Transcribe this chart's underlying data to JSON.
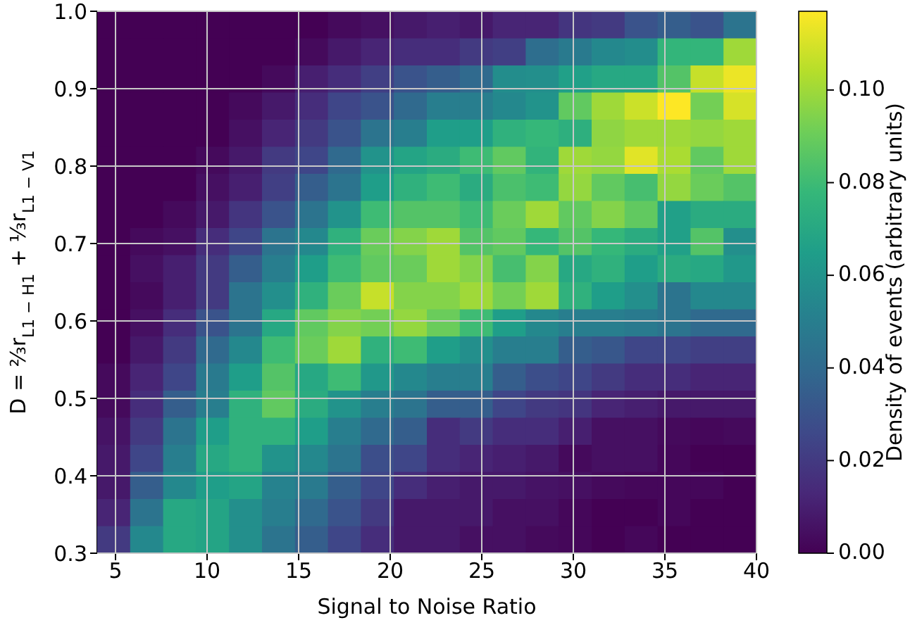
{
  "chart_data": {
    "type": "heatmap",
    "xlabel": "Signal to Noise Ratio",
    "ylabel": "D = ⅔r$_{L1 − H1}$ + ⅓r$_{L1 − V1}$",
    "clabel": "Density of events (arbitrary units)",
    "x": [
      4.9,
      6.7,
      8.5,
      10.3,
      12.1,
      13.9,
      15.7,
      17.5,
      19.3,
      21.1,
      22.9,
      24.7,
      26.5,
      28.3,
      30.1,
      31.9,
      33.7,
      35.5,
      37.3,
      39.1
    ],
    "y": [
      0.9825,
      0.9475,
      0.9125,
      0.8775,
      0.8425,
      0.8075,
      0.7725,
      0.7375,
      0.7025,
      0.6675,
      0.6325,
      0.5975,
      0.5625,
      0.5275,
      0.4925,
      0.4575,
      0.4225,
      0.3875,
      0.3525,
      0.3175
    ],
    "xlim": [
      4,
      40
    ],
    "xticks": [
      5,
      10,
      15,
      20,
      25,
      30,
      35,
      40
    ],
    "ylim": [
      0.3,
      1.0
    ],
    "yticks": [
      0.3,
      0.4,
      0.5,
      0.6,
      0.7,
      0.8,
      0.9,
      {
        "value": 1.0,
        "label": "1.0"
      }
    ],
    "clim": [
      0,
      0.117
    ],
    "cticks": [
      {
        "value": 0,
        "label": "0.00"
      },
      {
        "value": 0.02,
        "label": "0.02"
      },
      {
        "value": 0.04,
        "label": "0.04"
      },
      {
        "value": 0.06,
        "label": "0.06"
      },
      {
        "value": 0.08,
        "label": "0.08"
      },
      {
        "value": 0.1,
        "label": "0.10"
      }
    ],
    "grid": true,
    "cells": [
      [
        0,
        0,
        0,
        0,
        0,
        0,
        0,
        0.003,
        0.005,
        0.008,
        0.01,
        0.008,
        0.012,
        0.012,
        0.018,
        0.02,
        0.03,
        0.035,
        0.03,
        0.045
      ],
      [
        0,
        0,
        0,
        0,
        0,
        0,
        0.003,
        0.008,
        0.012,
        0.015,
        0.015,
        0.02,
        0.022,
        0.042,
        0.048,
        0.055,
        0.057,
        0.077,
        0.077,
        0.1
      ],
      [
        0,
        0,
        0,
        0,
        0,
        0.003,
        0.01,
        0.015,
        0.022,
        0.03,
        0.035,
        0.04,
        0.057,
        0.058,
        0.066,
        0.07,
        0.07,
        0.085,
        0.107,
        0.114
      ],
      [
        0,
        0,
        0,
        0,
        0.003,
        0.008,
        0.015,
        0.025,
        0.03,
        0.04,
        0.05,
        0.05,
        0.055,
        0.06,
        0.088,
        0.1,
        0.108,
        0.117,
        0.092,
        0.11
      ],
      [
        0,
        0,
        0,
        0,
        0.005,
        0.012,
        0.02,
        0.03,
        0.045,
        0.05,
        0.065,
        0.065,
        0.075,
        0.078,
        0.074,
        0.097,
        0.1,
        0.1,
        0.098,
        0.1
      ],
      [
        0,
        0,
        0,
        0.003,
        0.008,
        0.02,
        0.025,
        0.04,
        0.06,
        0.068,
        0.072,
        0.08,
        0.088,
        0.076,
        0.1,
        0.098,
        0.112,
        0.102,
        0.088,
        0.1
      ],
      [
        0,
        0,
        0,
        0.005,
        0.01,
        0.022,
        0.035,
        0.045,
        0.065,
        0.075,
        0.08,
        0.072,
        0.083,
        0.08,
        0.098,
        0.088,
        0.082,
        0.098,
        0.09,
        0.085
      ],
      [
        0,
        0,
        0.003,
        0.008,
        0.018,
        0.03,
        0.045,
        0.06,
        0.08,
        0.085,
        0.085,
        0.08,
        0.09,
        0.1,
        0.088,
        0.095,
        0.088,
        0.066,
        0.072,
        0.072
      ],
      [
        0,
        0.003,
        0.005,
        0.015,
        0.025,
        0.045,
        0.055,
        0.075,
        0.09,
        0.095,
        0.1,
        0.085,
        0.088,
        0.078,
        0.085,
        0.078,
        0.072,
        0.066,
        0.085,
        0.058
      ],
      [
        0,
        0.005,
        0.01,
        0.02,
        0.035,
        0.05,
        0.065,
        0.08,
        0.088,
        0.09,
        0.1,
        0.095,
        0.082,
        0.095,
        0.07,
        0.075,
        0.065,
        0.072,
        0.07,
        0.062
      ],
      [
        0,
        0.003,
        0.01,
        0.02,
        0.045,
        0.058,
        0.075,
        0.09,
        0.107,
        0.095,
        0.095,
        0.1,
        0.092,
        0.1,
        0.075,
        0.065,
        0.058,
        0.045,
        0.055,
        0.055
      ],
      [
        0,
        0.005,
        0.015,
        0.03,
        0.045,
        0.07,
        0.088,
        0.095,
        0.092,
        0.098,
        0.09,
        0.08,
        0.065,
        0.055,
        0.05,
        0.05,
        0.048,
        0.045,
        0.04,
        0.04
      ],
      [
        0,
        0.008,
        0.02,
        0.04,
        0.055,
        0.08,
        0.09,
        0.1,
        0.075,
        0.08,
        0.065,
        0.058,
        0.05,
        0.05,
        0.035,
        0.032,
        0.025,
        0.025,
        0.022,
        0.022
      ],
      [
        0.003,
        0.012,
        0.025,
        0.048,
        0.065,
        0.085,
        0.07,
        0.08,
        0.062,
        0.055,
        0.05,
        0.05,
        0.035,
        0.028,
        0.025,
        0.02,
        0.015,
        0.015,
        0.012,
        0.012
      ],
      [
        0.003,
        0.015,
        0.035,
        0.05,
        0.075,
        0.088,
        0.072,
        0.06,
        0.05,
        0.045,
        0.035,
        0.035,
        0.025,
        0.02,
        0.018,
        0.012,
        0.01,
        0.008,
        0.008,
        0.008
      ],
      [
        0.006,
        0.02,
        0.045,
        0.065,
        0.075,
        0.075,
        0.065,
        0.05,
        0.04,
        0.035,
        0.015,
        0.02,
        0.015,
        0.015,
        0.01,
        0.005,
        0.005,
        0.003,
        0.002,
        0.003
      ],
      [
        0.008,
        0.025,
        0.05,
        0.07,
        0.075,
        0.06,
        0.055,
        0.045,
        0.028,
        0.025,
        0.015,
        0.012,
        0.01,
        0.008,
        0.003,
        0.005,
        0.005,
        0.002,
        0,
        0
      ],
      [
        0.008,
        0.035,
        0.055,
        0.065,
        0.068,
        0.052,
        0.048,
        0.035,
        0.025,
        0.015,
        0.01,
        0.008,
        0.008,
        0.006,
        0.005,
        0.003,
        0.002,
        0.002,
        0.002,
        0
      ],
      [
        0.012,
        0.045,
        0.07,
        0.068,
        0.058,
        0.05,
        0.04,
        0.03,
        0.02,
        0.008,
        0.008,
        0.008,
        0.005,
        0.005,
        0.002,
        0,
        0,
        0.002,
        0,
        0
      ],
      [
        0.02,
        0.055,
        0.07,
        0.068,
        0.058,
        0.045,
        0.035,
        0.025,
        0.015,
        0.008,
        0.008,
        0.005,
        0.005,
        0.003,
        0.002,
        0,
        0.002,
        0,
        0,
        0
      ]
    ]
  }
}
